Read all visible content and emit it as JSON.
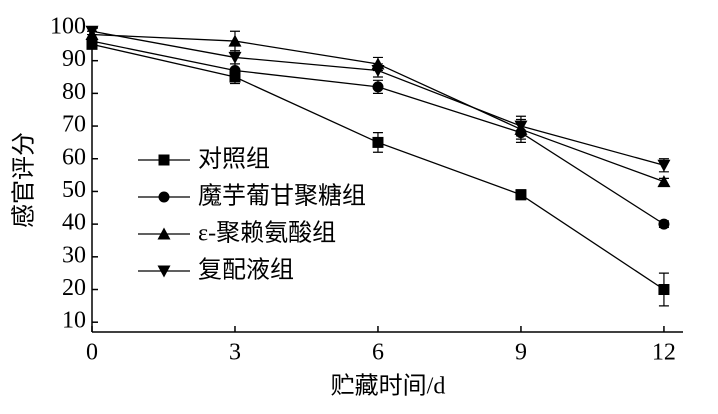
{
  "chart_data": {
    "type": "line",
    "x_label": "贮藏时间/d",
    "y_label": "感官评分",
    "x": [
      0,
      3,
      6,
      9,
      12
    ],
    "xlim": [
      0,
      12.4
    ],
    "xticks": [
      0,
      3,
      6,
      9,
      12
    ],
    "ylim": [
      7,
      100
    ],
    "yticks": [
      10,
      20,
      30,
      40,
      50,
      60,
      70,
      80,
      90,
      100
    ],
    "legend": "middle-left",
    "series": [
      {
        "name": "对照组",
        "color": "#000000",
        "marker": "square",
        "values": [
          95,
          85,
          65,
          49,
          20
        ],
        "errors": [
          1,
          2,
          3,
          1.5,
          5
        ]
      },
      {
        "name": "魔芋葡甘聚糖组",
        "color": "#000000",
        "marker": "circle",
        "values": [
          96,
          87,
          82,
          68,
          40
        ],
        "errors": [
          1,
          2,
          2,
          3,
          1
        ]
      },
      {
        "name": "ε-聚赖氨酸组",
        "color": "#000000",
        "marker": "triangle-up",
        "values": [
          98,
          96,
          89,
          69,
          53
        ],
        "errors": [
          1,
          3,
          2,
          3,
          1
        ]
      },
      {
        "name": "复配液组",
        "color": "#000000",
        "marker": "triangle-down",
        "values": [
          99,
          91,
          87,
          70,
          58
        ],
        "errors": [
          1,
          2,
          2,
          3,
          2
        ]
      }
    ]
  }
}
